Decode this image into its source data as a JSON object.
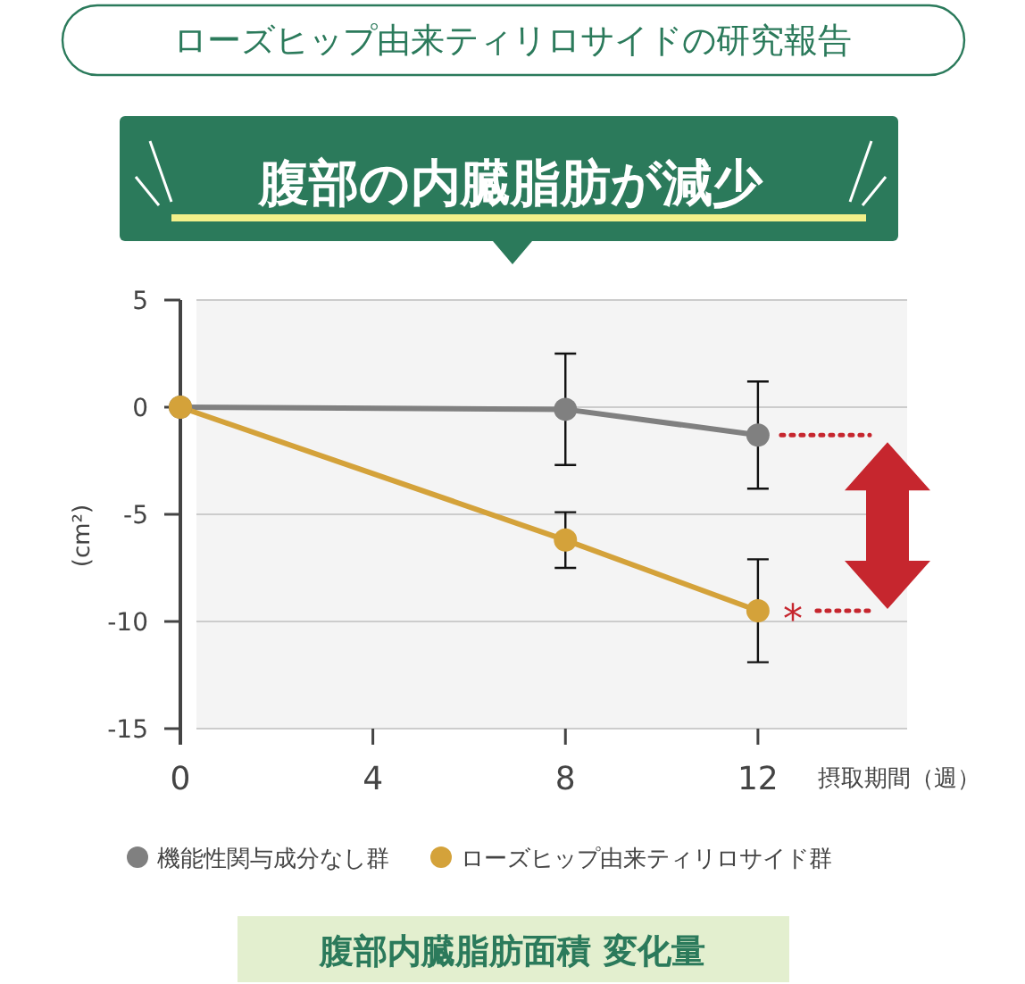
{
  "chart_data": {
    "type": "line",
    "title": "ローズヒップ由来ティリロサイドの研究報告",
    "subtitle": "腹部の内臓脂肪が減少",
    "xlabel": "摂取期間（週）",
    "ylabel": "(cm²)",
    "x": [
      0,
      8,
      12
    ],
    "xlim": [
      0,
      15.1
    ],
    "xticks": [
      0,
      4,
      8,
      12
    ],
    "ylim": [
      -15,
      5
    ],
    "yticks": [
      -15,
      -10,
      -5,
      0,
      5
    ],
    "grid": "y",
    "legend": "bottom",
    "marker": "circle",
    "series": [
      {
        "name": "機能性関与成分なし群",
        "color": "#808080",
        "values": [
          0,
          -0.1,
          -1.3
        ],
        "errors": [
          null,
          2.6,
          2.5
        ]
      },
      {
        "name": "ローズヒップ由来ティリロサイド群",
        "color": "#d4a23a",
        "values": [
          0,
          -6.2,
          -9.5
        ],
        "errors": [
          null,
          1.3,
          2.4
        ]
      }
    ],
    "annotations": [
      {
        "text": "*",
        "x": 12,
        "y": -9.5
      },
      "腹部内臓脂肪面積 変化量"
    ]
  }
}
